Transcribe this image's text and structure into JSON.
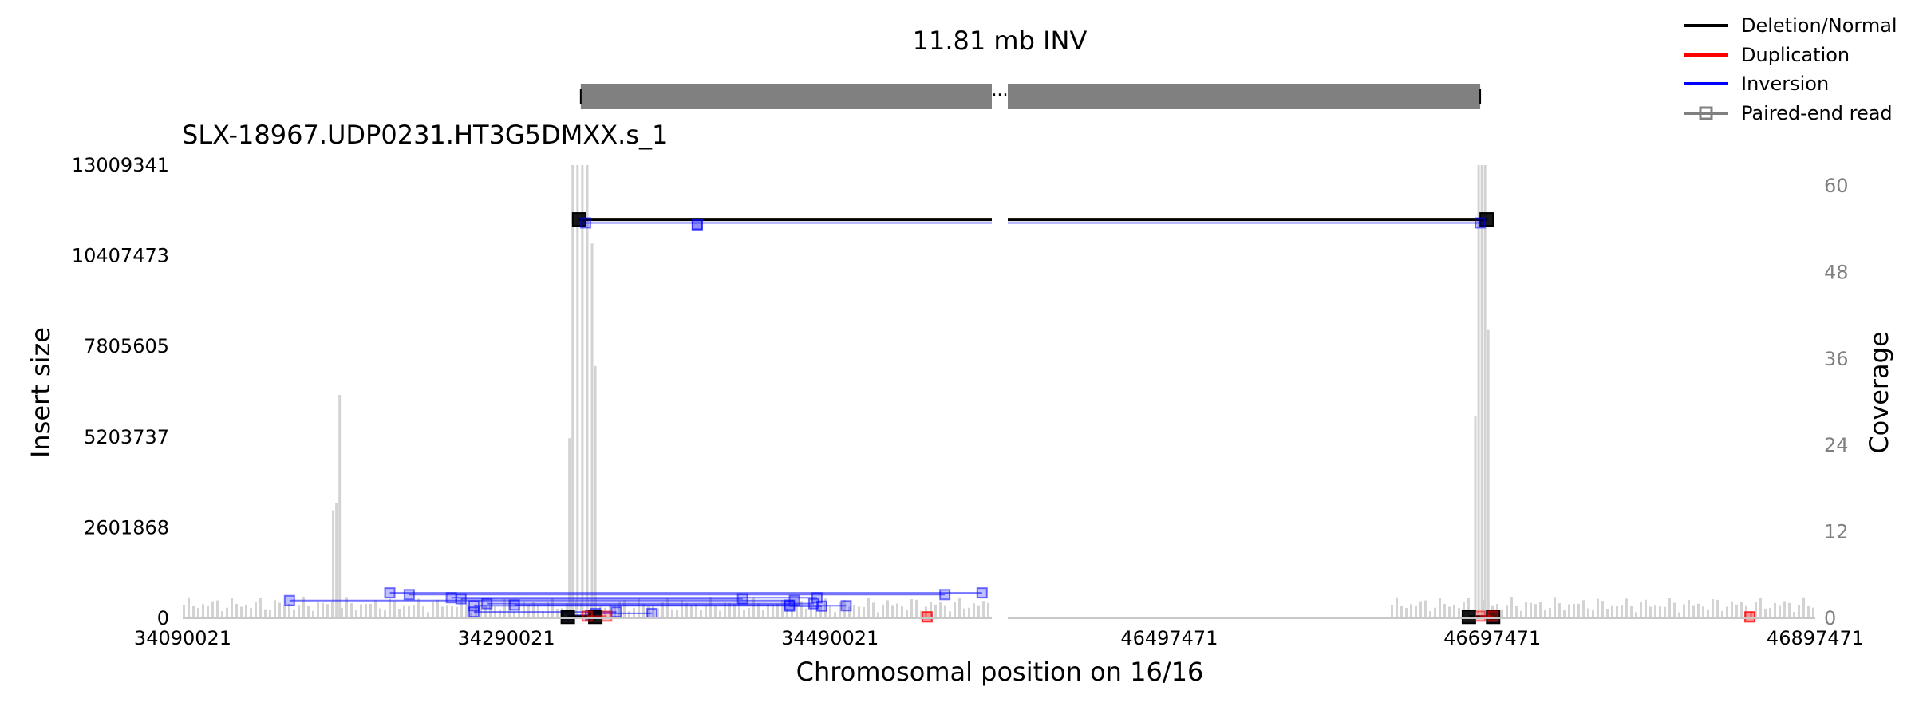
{
  "chart_data": {
    "type": "structural-variant-plot",
    "title": "11.81 mb INV",
    "sample_title": "SLX-18967.UDP0231.HT3G5DMXX.s_1",
    "xlabel": "Chromosomal position on 16/16",
    "ylabel_left": "Insert size",
    "ylabel_right": "Coverage",
    "break_marker": "...",
    "left_panel": {
      "xlim": [
        34090021,
        34590021
      ],
      "xticks": [
        34090021,
        34290021,
        34490021
      ],
      "xtick_labels": [
        "34090021",
        "34290021",
        "34490021"
      ]
    },
    "right_panel": {
      "xlim": [
        46397471,
        46897471
      ],
      "xticks": [
        46497471,
        46697471,
        46897471
      ],
      "xtick_labels": [
        "46497471",
        "46697471",
        "46897471"
      ]
    },
    "ylim_insert": [
      0,
      13009341
    ],
    "yticks_insert": [
      0,
      2601868,
      5203737,
      7805605,
      10407473,
      13009341
    ],
    "ytick_labels_insert": [
      "0",
      "2601868",
      "5203737",
      "7805605",
      "10407473",
      "13009341"
    ],
    "ylim_coverage": [
      0,
      60
    ],
    "yticks_coverage": [
      0,
      12,
      24,
      36,
      48,
      60
    ],
    "ytick_labels_coverage": [
      "0",
      "12",
      "24",
      "36",
      "48",
      "60"
    ],
    "sv_bar": {
      "start": 34336000,
      "end": 46690000
    },
    "legend": [
      {
        "label": "Deletion/Normal",
        "color": "#000000",
        "marker": false
      },
      {
        "label": "Duplication",
        "color": "#ff0000",
        "marker": false
      },
      {
        "label": "Inversion",
        "color": "#0000ff",
        "marker": false
      },
      {
        "label": "Paired-end read",
        "color": "#808080",
        "marker": true
      }
    ],
    "colors": {
      "normal": "#000000",
      "duplication": "#ff0000",
      "inversion": "#0000ff",
      "coverage": "#d3d3d3",
      "sv_bar": "#808080"
    },
    "coverage_peaks": [
      {
        "x": 34187000,
        "y": 31
      },
      {
        "x": 34185000,
        "y": 16
      },
      {
        "x": 34183000,
        "y": 15
      },
      {
        "x": 34331000,
        "y": 64
      },
      {
        "x": 34334000,
        "y": 64
      },
      {
        "x": 34337000,
        "y": 64
      },
      {
        "x": 34340000,
        "y": 64
      },
      {
        "x": 34343000,
        "y": 52
      },
      {
        "x": 34329000,
        "y": 25
      },
      {
        "x": 34345000,
        "y": 35
      },
      {
        "x": 46687000,
        "y": 28
      },
      {
        "x": 46689000,
        "y": 64
      },
      {
        "x": 46691000,
        "y": 64
      },
      {
        "x": 46693000,
        "y": 64
      },
      {
        "x": 46695000,
        "y": 40
      }
    ],
    "paired_end_reads": [
      {
        "type": "normal",
        "x1": 34335000,
        "x2": 46694000,
        "y": 11450000
      },
      {
        "type": "inversion",
        "x1": 34339000,
        "x2": 46690000,
        "y": 11350000
      },
      {
        "type": "inversion",
        "x1": 34408000,
        "x2": 34408000,
        "y": 11300000
      },
      {
        "type": "inversion",
        "x1": 34156000,
        "x2": 34468000,
        "y": 510000
      },
      {
        "type": "inversion",
        "x1": 34218000,
        "x2": 34584000,
        "y": 730000
      },
      {
        "type": "inversion",
        "x1": 34230000,
        "x2": 34561000,
        "y": 680000
      },
      {
        "type": "inversion",
        "x1": 34256000,
        "x2": 34482000,
        "y": 590000
      },
      {
        "type": "inversion",
        "x1": 34262000,
        "x2": 34436000,
        "y": 560000
      },
      {
        "type": "inversion",
        "x1": 34278000,
        "x2": 34480000,
        "y": 420000
      },
      {
        "type": "inversion",
        "x1": 34295000,
        "x2": 34465000,
        "y": 380000
      },
      {
        "type": "inversion",
        "x1": 34270000,
        "x2": 34500000,
        "y": 360000
      },
      {
        "type": "inversion",
        "x1": 34328000,
        "x2": 34342000,
        "y": 90000
      },
      {
        "type": "inversion",
        "x1": 34270000,
        "x2": 34358000,
        "y": 180000
      },
      {
        "type": "inversion",
        "x1": 34345000,
        "x2": 34380000,
        "y": 140000
      },
      {
        "type": "inversion",
        "x1": 34465000,
        "x2": 34485000,
        "y": 350000
      },
      {
        "type": "normal",
        "x1": 34328000,
        "x2": 34345000,
        "y": 40000
      },
      {
        "type": "normal",
        "x1": 46683000,
        "x2": 46698000,
        "y": 40000
      },
      {
        "type": "duplication",
        "x1": 34340000,
        "x2": 34352000,
        "y": 60000
      },
      {
        "type": "duplication",
        "x1": 34550000,
        "x2": 34550000,
        "y": 40000
      },
      {
        "type": "duplication",
        "x1": 46690000,
        "x2": 46698000,
        "y": 60000
      },
      {
        "type": "duplication",
        "x1": 46857000,
        "x2": 46857000,
        "y": 40000
      }
    ]
  }
}
